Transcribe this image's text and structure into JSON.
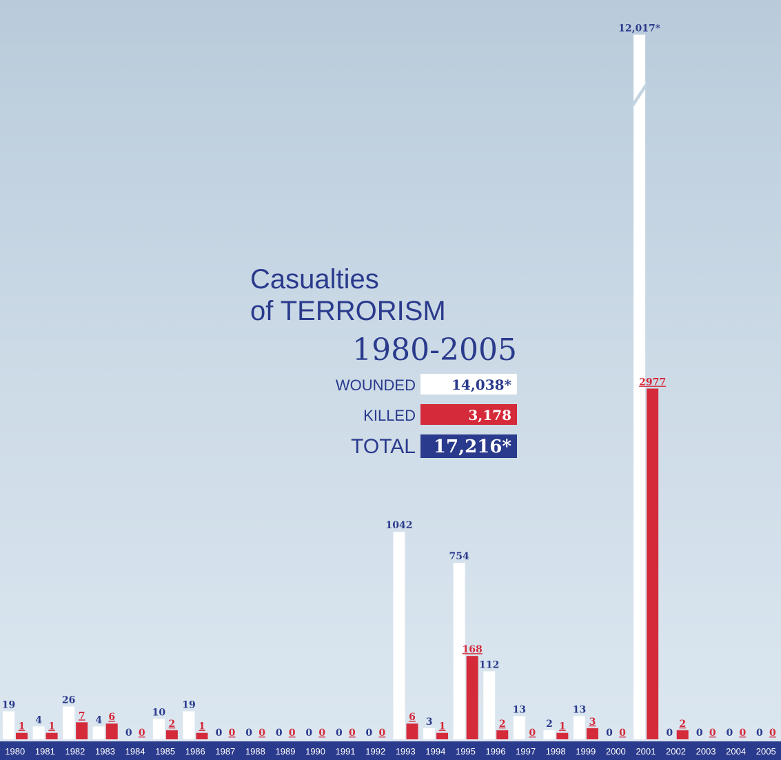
{
  "chart_data": {
    "type": "bar",
    "title": [
      "Casualties",
      "of TERRORISM",
      "1980-2005"
    ],
    "summary": [
      {
        "label": "WOUNDED",
        "value": "14,038*"
      },
      {
        "label": "KILLED",
        "value": "3,178"
      },
      {
        "label": "TOTAL",
        "value": "17,216*"
      }
    ],
    "categories": [
      "1980",
      "1981",
      "1982",
      "1983",
      "1984",
      "1985",
      "1986",
      "1987",
      "1988",
      "1989",
      "1990",
      "1991",
      "1992",
      "1993",
      "1994",
      "1995",
      "1996",
      "1997",
      "1998",
      "1999",
      "2000",
      "2001",
      "2002",
      "2003",
      "2004",
      "2005"
    ],
    "series": [
      {
        "name": "WOUNDED",
        "color": "#ffffff",
        "label_color": "#2a3a8c",
        "values": [
          19,
          4,
          26,
          4,
          0,
          10,
          19,
          0,
          0,
          0,
          0,
          0,
          0,
          1042,
          3,
          754,
          112,
          13,
          2,
          13,
          0,
          12017,
          0,
          0,
          0,
          0
        ],
        "value_labels": [
          "19",
          "4",
          "26",
          "4",
          "0",
          "10",
          "19",
          "0",
          "0",
          "0",
          "0",
          "0",
          "0",
          "1042",
          "3",
          "754",
          "112",
          "13",
          "2",
          "13",
          "0",
          "12,017*",
          "0",
          "0",
          "0",
          "0"
        ]
      },
      {
        "name": "KILLED",
        "color": "#d42a3a",
        "label_color": "#d42a3a",
        "values": [
          1,
          1,
          7,
          6,
          0,
          2,
          1,
          0,
          0,
          0,
          0,
          0,
          0,
          6,
          1,
          168,
          2,
          0,
          1,
          3,
          0,
          2977,
          2,
          0,
          0,
          0
        ]
      }
    ],
    "scale": "sqrt",
    "ylim": [
      0,
      12500
    ]
  }
}
